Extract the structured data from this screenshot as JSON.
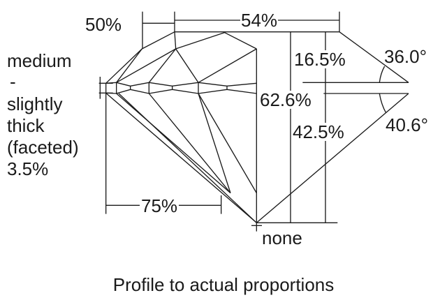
{
  "diagram": {
    "table_percent": "54%",
    "star_length": "50%",
    "girdle_lines": [
      "medium",
      "-",
      "slightly",
      "thick",
      "(faceted)",
      "3.5%"
    ],
    "crown_height": "16.5%",
    "crown_angle": "36.0°",
    "total_depth": "62.6%",
    "pavilion_depth": "42.5%",
    "pavilion_angle": "40.6°",
    "lower_half_length": "75%",
    "culet": "none",
    "caption": "Profile to actual proportions"
  }
}
